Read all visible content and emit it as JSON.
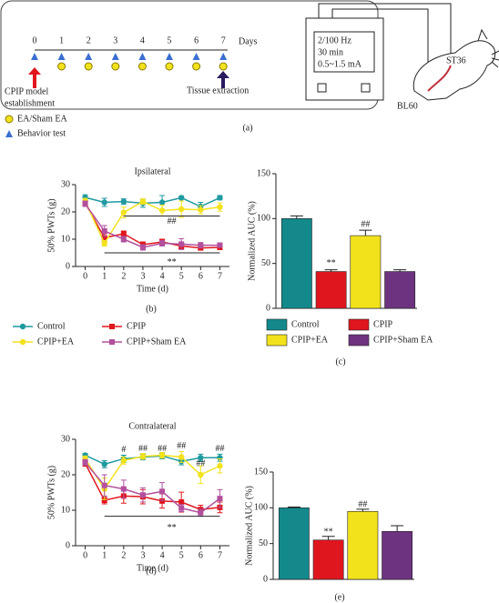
{
  "timeline": {
    "days": [
      0,
      1,
      2,
      3,
      4,
      5,
      6,
      7
    ],
    "unit_label": "Days",
    "start_label": [
      "CPIP model",
      "establishment"
    ],
    "end_label": "Tissue extraction",
    "legend": [
      "EA/Sham EA",
      "Behavior test"
    ],
    "device": [
      "2/100 Hz",
      "30 min",
      "0.5~1.5 mA"
    ],
    "points": [
      "ST36",
      "BL60"
    ]
  },
  "panel_labels": [
    "(a)",
    "(b)",
    "(c)",
    "(d)",
    "(e)"
  ],
  "chart_data": [
    {
      "type": "line",
      "title": "Ipsilateral",
      "x_label": "Time (d)",
      "y_label": "50% PWTs (g)",
      "x": [
        0,
        1,
        2,
        3,
        4,
        5,
        6,
        7
      ],
      "xlim": [
        -0.5,
        7.5
      ],
      "xticks": [
        0,
        1,
        2,
        3,
        4,
        5,
        6,
        7
      ],
      "ylim": [
        0,
        30
      ],
      "yticks": [
        0,
        10,
        20,
        30
      ],
      "series": [
        {
          "name": "Control",
          "color": "#1f9aa0",
          "marker": "circle",
          "values": [
            25.3,
            23.5,
            23.8,
            23.2,
            23.5,
            25.2,
            22,
            25.2
          ],
          "errors": [
            1,
            1.5,
            1,
            1.5,
            2.5,
            0.5,
            1.5,
            0.8
          ]
        },
        {
          "name": "CPIP",
          "color": "#e0161e",
          "marker": "square",
          "values": [
            23.3,
            10.5,
            12,
            8,
            9,
            7.5,
            6.8,
            7
          ],
          "errors": [
            1,
            1.5,
            1,
            1,
            1,
            1,
            0.8,
            0.8
          ]
        },
        {
          "name": "CPIP+EA",
          "color": "#f2e21c",
          "marker": "circle",
          "values": [
            24,
            8.5,
            19.8,
            23.8,
            20.5,
            21,
            20.8,
            21.8
          ],
          "errors": [
            1,
            1,
            2,
            1,
            2,
            3,
            1.5,
            1.5
          ]
        },
        {
          "name": "CPIP+Sham EA",
          "color": "#b2509e",
          "marker": "square",
          "values": [
            23,
            13,
            10,
            7,
            8.5,
            8.2,
            7.8,
            7.8
          ],
          "errors": [
            1,
            2,
            1,
            1,
            1,
            2,
            1,
            0.8
          ]
        }
      ],
      "annotations": [
        {
          "text": "##",
          "x": 4.5,
          "y": 16.5,
          "line": [
            2,
            7
          ],
          "line_y": 18.5
        },
        {
          "text": "**",
          "x": 4.5,
          "y": 1.5,
          "line": [
            1,
            7
          ],
          "line_y": 5
        }
      ]
    },
    {
      "type": "bar",
      "y_label": "Normalized AUC (%)",
      "categories": [
        "Control",
        "CPIP",
        "CPIP+EA",
        "CPIP+Sham EA"
      ],
      "colors": [
        "#14898c",
        "#e0161e",
        "#f2e21c",
        "#6e3380"
      ],
      "values": [
        100,
        41,
        81,
        41
      ],
      "errors": [
        3,
        2,
        6,
        2
      ],
      "ylim": [
        0,
        150
      ],
      "yticks": [
        0,
        50,
        100,
        150
      ],
      "annotations": [
        {
          "text": "**",
          "x": 1,
          "y": 50
        },
        {
          "text": "##",
          "x": 2,
          "y": 93
        }
      ]
    },
    {
      "type": "line",
      "title": "Contralateral",
      "x_label": "Time (d)",
      "y_label": "50% PWTs (g)",
      "x": [
        0,
        1,
        2,
        3,
        4,
        5,
        6,
        7
      ],
      "xlim": [
        -0.5,
        7.5
      ],
      "xticks": [
        0,
        1,
        2,
        3,
        4,
        5,
        6,
        7
      ],
      "ylim": [
        0,
        30
      ],
      "yticks": [
        0,
        10,
        20,
        30
      ],
      "series": [
        {
          "color": "#1f9aa0",
          "marker": "circle",
          "values": [
            25.5,
            23,
            24.5,
            25,
            25.3,
            23.8,
            24.8,
            24.8
          ],
          "errors": [
            0.5,
            1,
            1,
            0.8,
            0.8,
            1,
            1,
            1
          ]
        },
        {
          "color": "#e0161e",
          "marker": "square",
          "values": [
            23.2,
            12.8,
            14,
            13.8,
            12.6,
            12.3,
            10.2,
            10.8
          ],
          "errors": [
            0.8,
            1,
            2,
            2,
            2,
            2.8,
            1.2,
            1.5
          ]
        },
        {
          "color": "#f2e21c",
          "marker": "circle",
          "values": [
            24.5,
            16,
            24,
            25.2,
            25.5,
            25,
            20,
            22.5
          ],
          "errors": [
            0.8,
            3,
            1,
            0.8,
            0.8,
            1.5,
            2.5,
            2
          ]
        },
        {
          "color": "#b2509e",
          "marker": "square",
          "values": [
            23.5,
            17,
            16,
            14.3,
            15.3,
            10.6,
            9.3,
            13.3
          ],
          "errors": [
            0.8,
            3,
            2.5,
            2,
            2.5,
            1,
            1,
            2.5
          ]
        }
      ],
      "annotations": [
        {
          "text": "#",
          "x": 2,
          "y": 27
        },
        {
          "text": "##",
          "x": 3,
          "y": 27.3
        },
        {
          "text": "##",
          "x": 4,
          "y": 27.3
        },
        {
          "text": "##",
          "x": 5,
          "y": 28
        },
        {
          "text": "##",
          "x": 6,
          "y": 23
        },
        {
          "text": "##",
          "x": 7,
          "y": 27.3
        },
        {
          "text": "**",
          "x": 4.5,
          "y": 5,
          "line": [
            1,
            7
          ],
          "line_y": 8.3
        }
      ]
    },
    {
      "type": "bar",
      "y_label": "Normalized AUC (%)",
      "colors": [
        "#14898c",
        "#e0161e",
        "#f2e21c",
        "#6e3380"
      ],
      "values": [
        100,
        55,
        95,
        67
      ],
      "errors": [
        1,
        5,
        3,
        8
      ],
      "ylim": [
        0,
        150
      ],
      "yticks": [
        0,
        50,
        100,
        150
      ],
      "annotations": [
        {
          "text": "**",
          "x": 1,
          "y": 66
        },
        {
          "text": "##",
          "x": 2,
          "y": 104
        }
      ]
    }
  ]
}
